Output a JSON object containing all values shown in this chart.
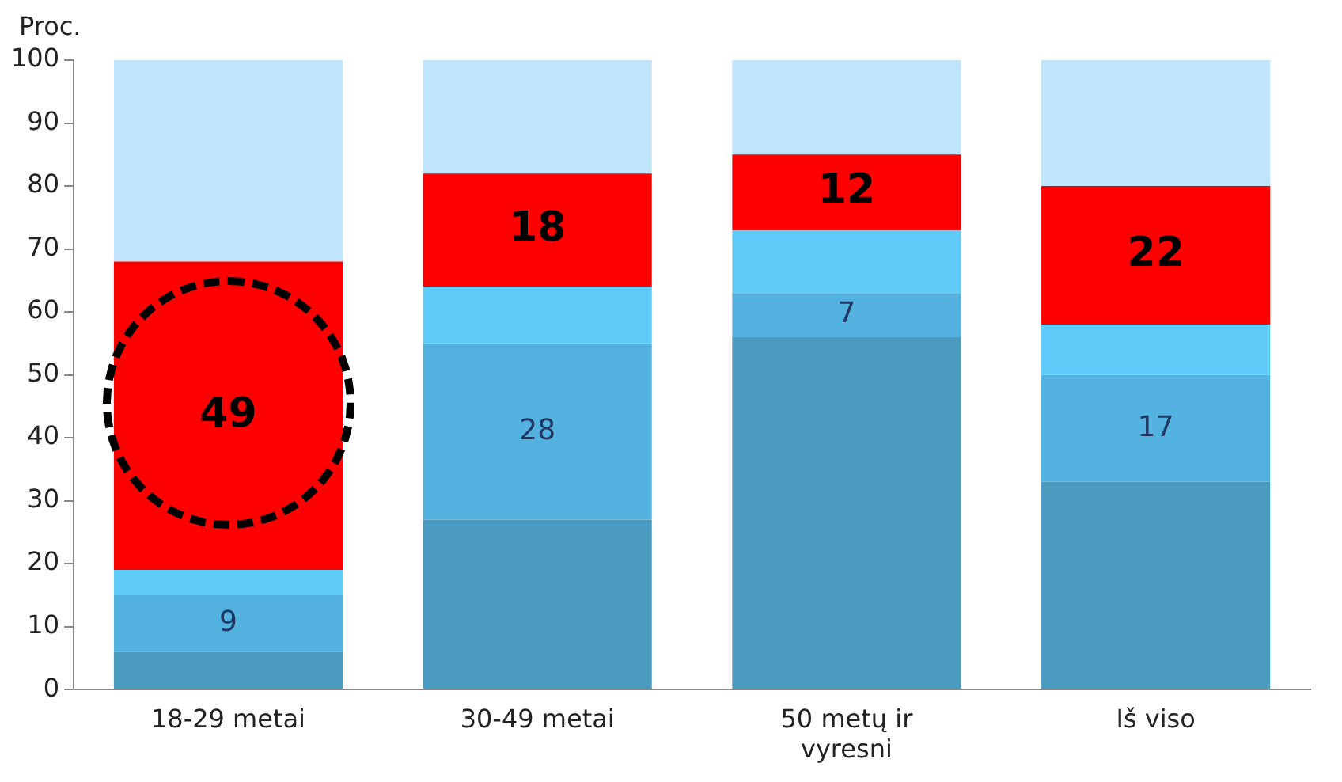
{
  "chart_data": {
    "type": "bar",
    "stacked": true,
    "ylabel": "Proc.",
    "categories": [
      "18-29 metai",
      "30-49 metai",
      "50 metų ir vyresni",
      "Iš viso"
    ],
    "series": [
      {
        "color": "#4a9bbf",
        "values": [
          6,
          27,
          56,
          33
        ]
      },
      {
        "color": "#53b2df",
        "values": [
          9,
          28,
          7,
          17
        ],
        "value_labels": [
          "9",
          "28",
          "7",
          "17"
        ]
      },
      {
        "color": "#5ecbf9",
        "values": [
          4,
          9,
          10,
          8
        ]
      },
      {
        "color": "#ff0000",
        "values": [
          49,
          18,
          12,
          22
        ],
        "value_labels": [
          "49",
          "18",
          "12",
          "22"
        ]
      },
      {
        "color": "#c0e4f9",
        "values": [
          32,
          18,
          15,
          20
        ]
      }
    ],
    "ylim": [
      0,
      100
    ],
    "yticks": [
      0,
      10,
      20,
      30,
      40,
      50,
      60,
      70,
      80,
      90,
      100
    ],
    "grid": false,
    "legend": false
  }
}
